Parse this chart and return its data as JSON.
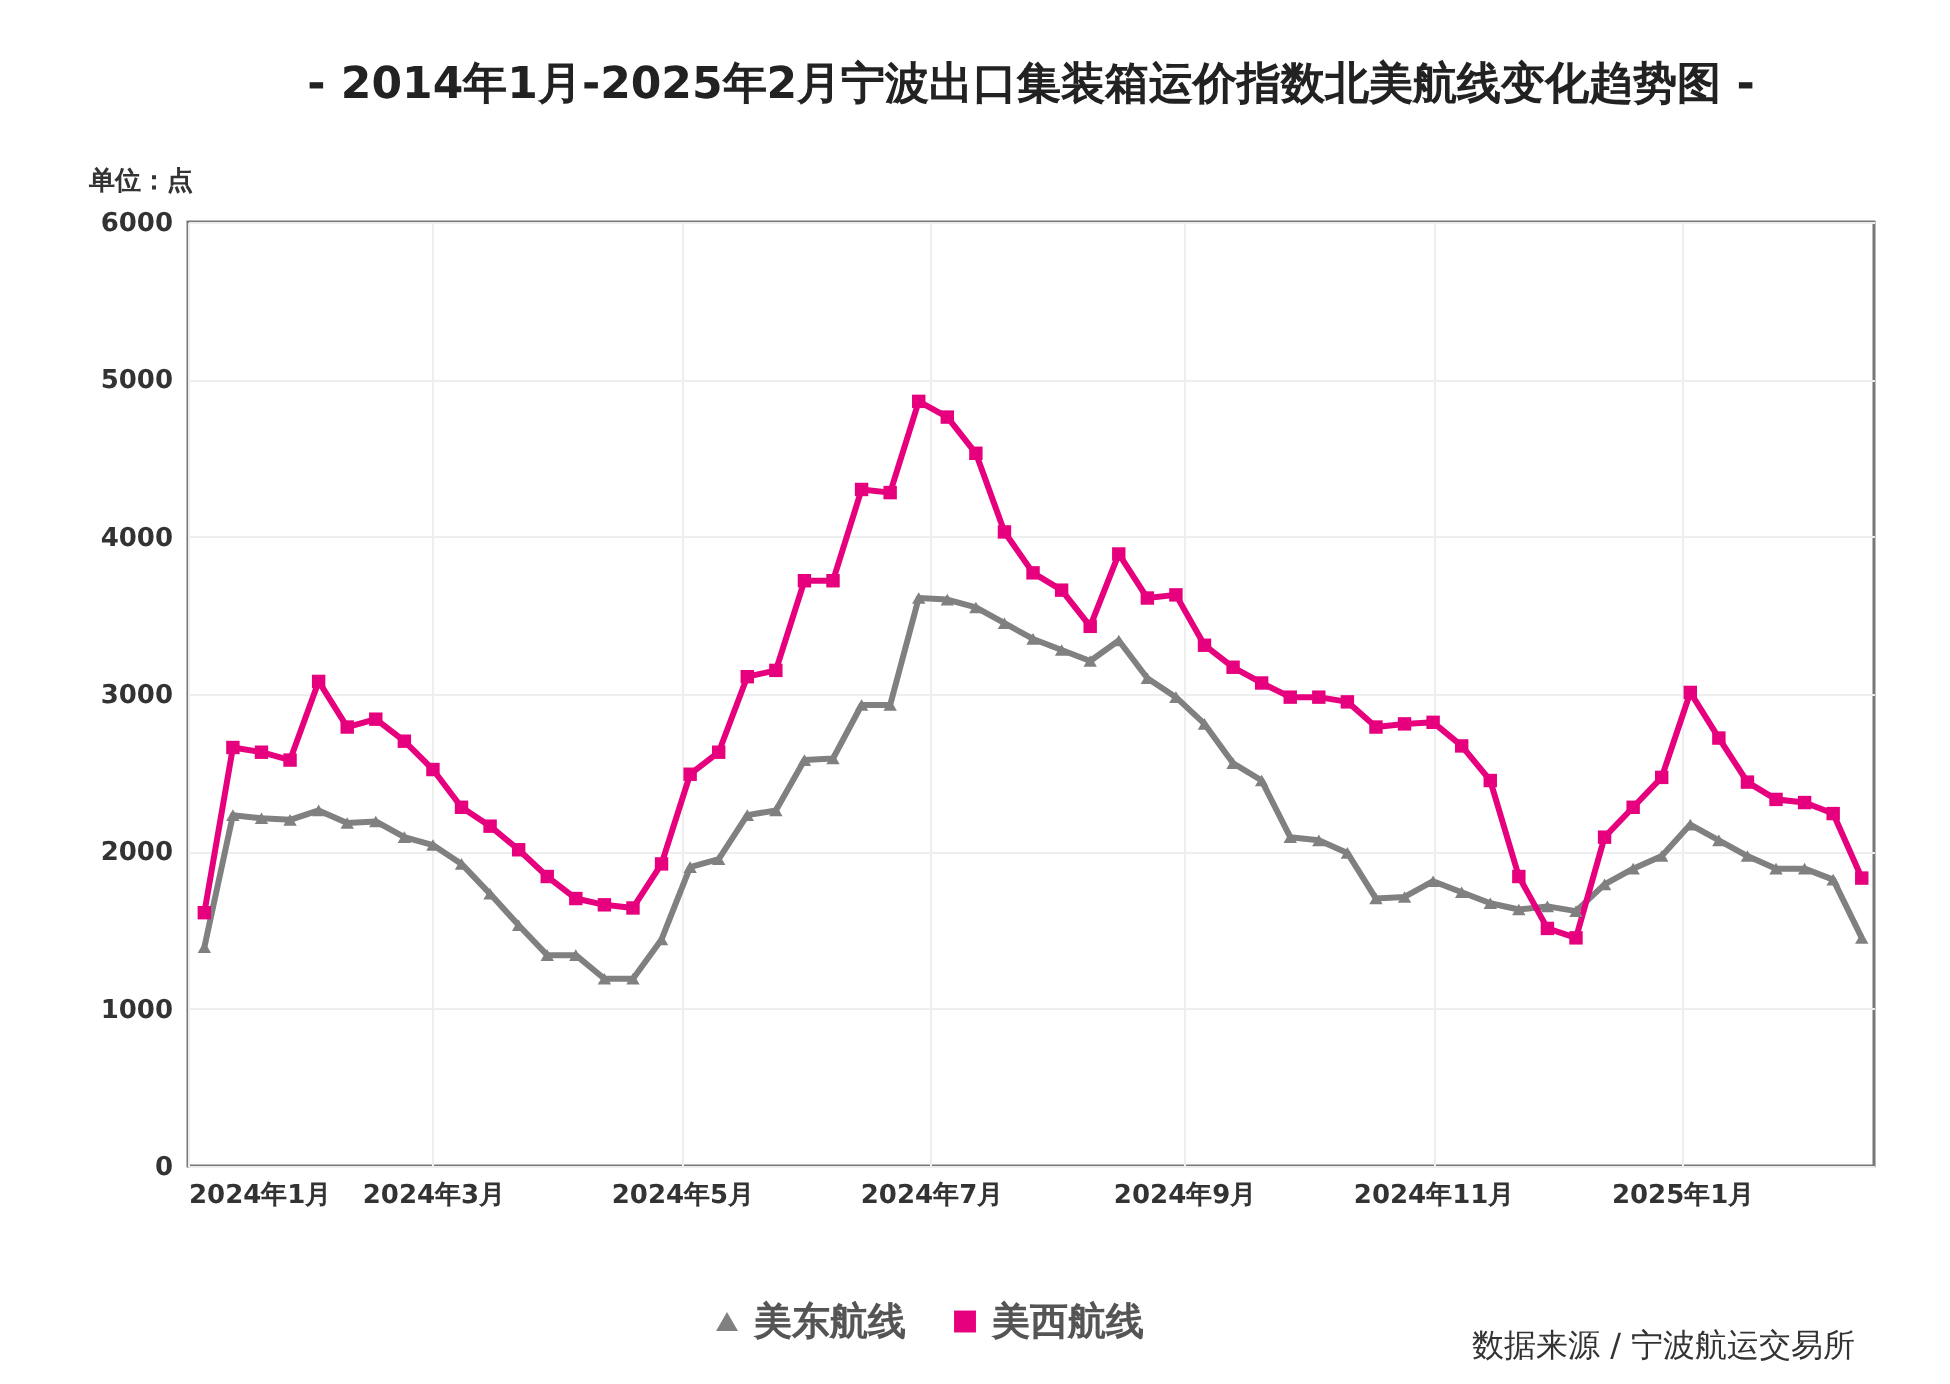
{
  "chart_data": {
    "type": "line",
    "title": "- 2014年1月-2025年2月宁波出口集装箱运价指数北美航线变化趋势图 -",
    "ylabel": "单位：点",
    "annotations": [
      "数据来源 / 宁波航运交易所"
    ],
    "x": [
      "2024-01-05",
      "2024-01-12",
      "2024-01-19",
      "2024-01-26",
      "2024-02-02",
      "2024-02-09",
      "2024-02-16",
      "2024-02-23",
      "2024-03-01",
      "2024-03-08",
      "2024-03-15",
      "2024-03-22",
      "2024-03-29",
      "2024-04-05",
      "2024-04-12",
      "2024-04-19",
      "2024-04-26",
      "2024-05-03",
      "2024-05-10",
      "2024-05-17",
      "2024-05-24",
      "2024-05-31",
      "2024-06-07",
      "2024-06-14",
      "2024-06-21",
      "2024-06-28",
      "2024-07-05",
      "2024-07-12",
      "2024-07-19",
      "2024-07-26",
      "2024-08-02",
      "2024-08-09",
      "2024-08-16",
      "2024-08-23",
      "2024-08-30",
      "2024-09-06",
      "2024-09-13",
      "2024-09-20",
      "2024-09-27",
      "2024-10-04",
      "2024-10-11",
      "2024-10-18",
      "2024-10-25",
      "2024-11-01",
      "2024-11-08",
      "2024-11-15",
      "2024-11-22",
      "2024-11-29",
      "2024-12-06",
      "2024-12-13",
      "2024-12-20",
      "2024-12-27",
      "2025-01-03",
      "2025-01-10",
      "2025-01-17",
      "2025-01-24",
      "2025-01-31",
      "2025-02-07",
      "2025-02-14"
    ],
    "series": [
      {
        "name": "美东航线",
        "color": "#808080",
        "marker": "triangle",
        "values": [
          1390,
          2230,
          2210,
          2200,
          2260,
          2180,
          2190,
          2090,
          2040,
          1920,
          1730,
          1530,
          1340,
          1340,
          1190,
          1190,
          1440,
          1900,
          1950,
          2230,
          2260,
          2580,
          2590,
          2930,
          2930,
          3610,
          3600,
          3550,
          3450,
          3350,
          3280,
          3210,
          3340,
          3100,
          2980,
          2810,
          2560,
          2450,
          2090,
          2070,
          1990,
          1700,
          1710,
          1810,
          1740,
          1670,
          1630,
          1650,
          1620,
          1790,
          1890,
          1970,
          2170,
          2070,
          1970,
          1890,
          1890,
          1820,
          1450
        ]
      },
      {
        "name": "美西航线",
        "color": "#e6007e",
        "marker": "square",
        "values": [
          1610,
          2660,
          2630,
          2580,
          3080,
          2790,
          2840,
          2700,
          2520,
          2280,
          2160,
          2010,
          1840,
          1700,
          1660,
          1640,
          1920,
          2490,
          2630,
          3110,
          3150,
          3720,
          3720,
          4300,
          4280,
          4860,
          4760,
          4530,
          4030,
          3770,
          3660,
          3430,
          3890,
          3610,
          3630,
          3310,
          3170,
          3070,
          2980,
          2980,
          2950,
          2790,
          2810,
          2820,
          2670,
          2450,
          1840,
          1510,
          1450,
          2090,
          2280,
          2470,
          3010,
          2720,
          2440,
          2330,
          2310,
          2240,
          1830
        ]
      }
    ],
    "xlim": [
      "2024-01-01",
      "2025-02-17"
    ],
    "xticks": [
      {
        "value": "2024-01-01",
        "label": "2024年1月"
      },
      {
        "value": "2024-03-01",
        "label": "2024年3月"
      },
      {
        "value": "2024-05-01",
        "label": "2024年5月"
      },
      {
        "value": "2024-07-01",
        "label": "2024年7月"
      },
      {
        "value": "2024-09-01",
        "label": "2024年9月"
      },
      {
        "value": "2024-11-01",
        "label": "2024年11月"
      },
      {
        "value": "2025-01-01",
        "label": "2025年1月"
      }
    ],
    "ylim": [
      0,
      6000
    ],
    "yticks": [
      0,
      1000,
      2000,
      3000,
      4000,
      5000,
      6000
    ],
    "grid": true,
    "legend": "bottom",
    "line_style": "solid"
  }
}
